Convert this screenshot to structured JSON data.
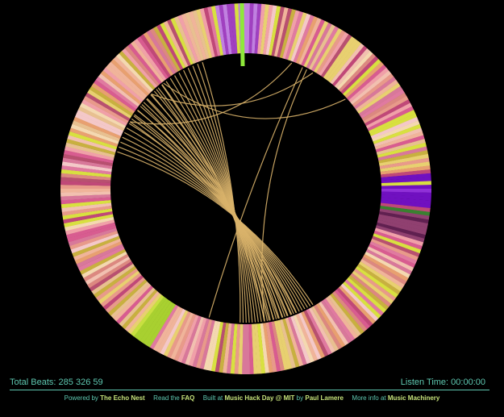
{
  "stats": {
    "total_beats_label": "Total Beats:",
    "total_beats_value": "285 326 59",
    "listen_time_label": "Listen Time:",
    "listen_time_value": "00:00:00"
  },
  "footer": {
    "powered_text": "Powered by",
    "powered_link": "The Echo Nest",
    "read_text": "Read the",
    "read_link": "FAQ",
    "built_text": "Built at",
    "built_link": "Music Hack Day @ MIT",
    "by_text": "by",
    "by_link": "Paul Lamere",
    "more_text": "More info at",
    "more_link": "Music Machinery"
  },
  "colors": {
    "background": "#000000",
    "accent": "#5ec7b0",
    "link": "#c6e27a",
    "cursor": "#8ee83a",
    "chord": "#d9b26a"
  }
}
